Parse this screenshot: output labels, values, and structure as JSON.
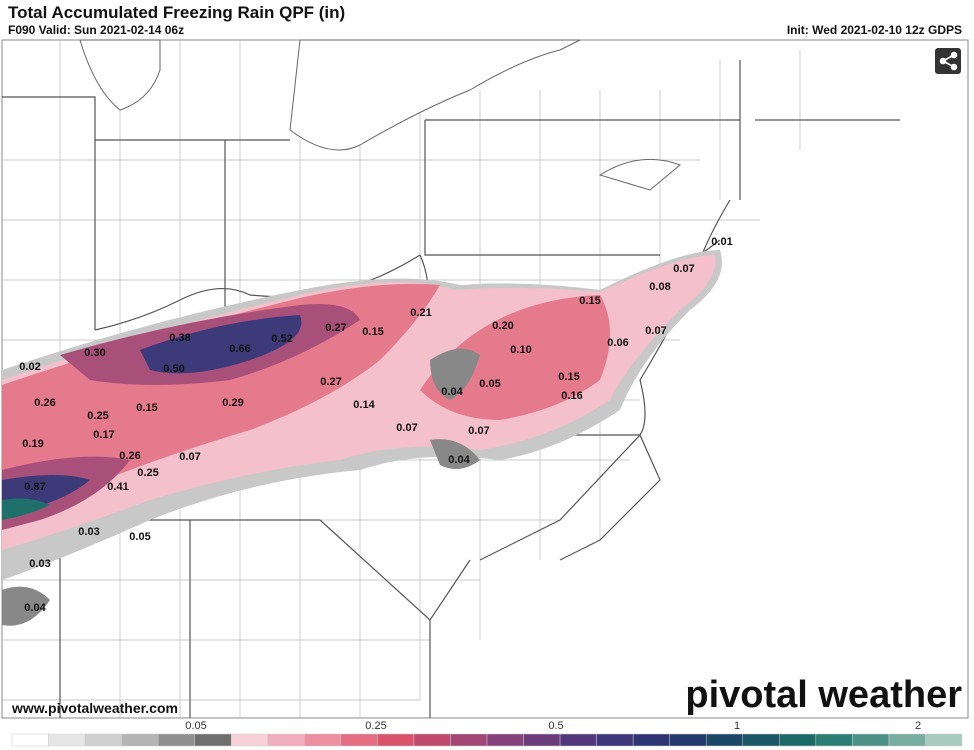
{
  "header": {
    "title": "Total Accumulated Freezing Rain QPF (in)",
    "valid": "F090 Valid: Sun 2021-02-14 06z",
    "init": "Init: Wed 2021-02-10 12z GDPS"
  },
  "map": {
    "labels": [
      "0.01",
      "0.07",
      "0.08",
      "0.15",
      "0.07",
      "0.06",
      "0.20",
      "0.10",
      "0.21",
      "0.27",
      "0.15",
      "0.52",
      "0.66",
      "0.38",
      "0.30",
      "0.50",
      "0.02",
      "0.27",
      "0.04",
      "0.05",
      "0.15",
      "0.16",
      "0.26",
      "0.25",
      "0.15",
      "0.29",
      "0.14",
      "0.07",
      "0.07",
      "0.19",
      "0.17",
      "0.26",
      "0.07",
      "0.25",
      "0.04",
      "0.87",
      "0.41",
      "0.03",
      "0.05",
      "0.03",
      "0.04"
    ]
  },
  "footer": {
    "website": "www.pivotalweather.com",
    "logo": "pivotal weather"
  },
  "colorbar": {
    "ticks": [
      "0.05",
      "0.25",
      "0.5",
      "1",
      "2"
    ]
  }
}
